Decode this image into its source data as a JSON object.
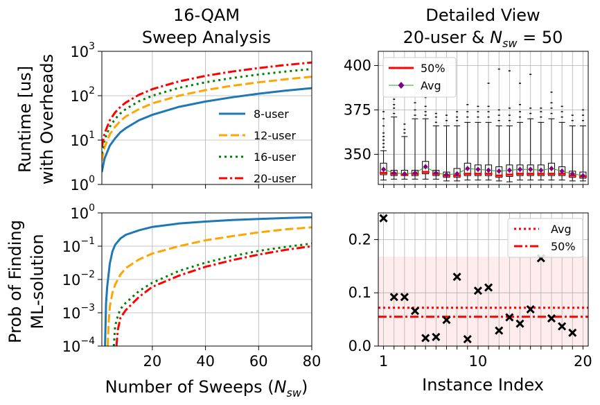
{
  "chart_data": [
    {
      "id": "top-left",
      "type": "line",
      "title_lines": [
        "16-QAM",
        "Sweep Analysis"
      ],
      "ylabel_lines": [
        "Runtime [us]",
        "with Overheads"
      ],
      "xlabel": "",
      "xlim": [
        1,
        80
      ],
      "ylim": [
        1,
        1000
      ],
      "yscale": "log",
      "xticks": [
        20,
        40,
        60,
        80
      ],
      "yticks": [
        {
          "base": "10",
          "exp": "0",
          "v": 1
        },
        {
          "base": "10",
          "exp": "1",
          "v": 10
        },
        {
          "base": "10",
          "exp": "2",
          "v": 100
        },
        {
          "base": "10",
          "exp": "3",
          "v": 1000
        }
      ],
      "grid": true,
      "legend_position": "lower-right",
      "series": [
        {
          "name": "8-user",
          "color": "#1f77b4",
          "dash": "",
          "x": [
            1,
            2,
            4,
            6,
            8,
            10,
            15,
            20,
            30,
            40,
            50,
            60,
            70,
            80
          ],
          "y": [
            1.9,
            3.8,
            7.5,
            11,
            15,
            18.5,
            28,
            37,
            56,
            74,
            92,
            111,
            130,
            148
          ]
        },
        {
          "name": "12-user",
          "color": "#ffa500",
          "dash": "12,5",
          "x": [
            1,
            2,
            4,
            6,
            8,
            10,
            15,
            20,
            30,
            40,
            50,
            60,
            70,
            80
          ],
          "y": [
            3.4,
            6.8,
            13.5,
            20,
            27,
            34,
            50,
            67,
            100,
            134,
            167,
            200,
            234,
            268
          ]
        },
        {
          "name": "16-user",
          "color": "#008000",
          "dash": "3,5",
          "x": [
            1,
            2,
            4,
            6,
            8,
            10,
            15,
            20,
            30,
            40,
            50,
            60,
            70,
            80
          ],
          "y": [
            5,
            10,
            20,
            30,
            40,
            50,
            75,
            100,
            150,
            200,
            250,
            300,
            350,
            400
          ]
        },
        {
          "name": "20-user",
          "color": "#ff0000",
          "dash": "12,4,3,4",
          "x": [
            1,
            2,
            4,
            6,
            8,
            10,
            15,
            20,
            30,
            40,
            50,
            60,
            70,
            80
          ],
          "y": [
            7,
            14,
            28,
            42,
            56,
            70,
            105,
            140,
            210,
            280,
            350,
            420,
            490,
            560
          ]
        }
      ]
    },
    {
      "id": "top-right",
      "type": "box",
      "title_lines": [
        "Detailed View",
        "20-user & N_sw = 50"
      ],
      "title_line2": {
        "pre": "20-user & ",
        "main": "N",
        "sub": "sw",
        "post": " = 50"
      },
      "xlabel": "",
      "ylabel": "",
      "xlim": [
        0.5,
        20.5
      ],
      "ylim": [
        333,
        408
      ],
      "yticks": [
        350,
        375,
        400
      ],
      "grid": true,
      "legend_position": "upper-left",
      "legend": [
        {
          "name": "50%",
          "color": "#ff0000",
          "kind": "line"
        },
        {
          "name": "Avg",
          "color": "#800080",
          "kind": "line-diamond",
          "line_color": "#2ca02c"
        }
      ],
      "boxes": [
        {
          "index": 1,
          "whislo": 335.5,
          "q1": 338.5,
          "med": 339.5,
          "q3": 345,
          "whishi": 352,
          "avg": 341.5,
          "outliers": [
            354,
            356,
            358,
            360,
            362,
            366,
            370,
            374
          ]
        },
        {
          "index": 2,
          "whislo": 336,
          "q1": 338,
          "med": 339,
          "q3": 341,
          "whishi": 371,
          "avg": 339.5,
          "outliers": [
            373,
            376,
            378,
            381
          ]
        },
        {
          "index": 3,
          "whislo": 336,
          "q1": 338,
          "med": 338.5,
          "q3": 341,
          "whishi": 360,
          "avg": 339,
          "outliers": [
            362,
            364,
            367
          ]
        },
        {
          "index": 4,
          "whislo": 336,
          "q1": 338,
          "med": 339,
          "q3": 341,
          "whishi": 370,
          "avg": 339.5,
          "outliers": [
            372,
            375,
            379
          ]
        },
        {
          "index": 5,
          "whislo": 336,
          "q1": 339,
          "med": 340,
          "q3": 346,
          "whishi": 370,
          "avg": 343,
          "outliers": [
            372,
            374,
            377,
            382
          ]
        },
        {
          "index": 6,
          "whislo": 336,
          "q1": 338,
          "med": 339,
          "q3": 341,
          "whishi": 366,
          "avg": 339.5,
          "outliers": [
            368,
            371,
            373
          ]
        },
        {
          "index": 7,
          "whislo": 335,
          "q1": 337,
          "med": 338,
          "q3": 340,
          "whishi": 366,
          "avg": 338.5,
          "outliers": [
            369,
            372
          ]
        },
        {
          "index": 8,
          "whislo": 335,
          "q1": 337,
          "med": 338,
          "q3": 342,
          "whishi": 366,
          "avg": 339,
          "outliers": [
            369,
            371,
            374
          ]
        },
        {
          "index": 9,
          "whislo": 335.5,
          "q1": 338,
          "med": 339,
          "q3": 345,
          "whishi": 368,
          "avg": 342,
          "outliers": [
            371,
            374,
            378
          ]
        },
        {
          "index": 10,
          "whislo": 335.5,
          "q1": 338,
          "med": 339,
          "q3": 344,
          "whishi": 368,
          "avg": 341.5,
          "outliers": [
            371,
            374,
            377
          ]
        },
        {
          "index": 11,
          "whislo": 335.5,
          "q1": 338,
          "med": 339,
          "q3": 344,
          "whishi": 368,
          "avg": 341,
          "outliers": [
            371,
            374,
            377,
            390
          ]
        },
        {
          "index": 12,
          "whislo": 335,
          "q1": 337,
          "med": 338,
          "q3": 343,
          "whishi": 366,
          "avg": 340.5,
          "outliers": [
            369,
            372,
            375,
            398
          ]
        },
        {
          "index": 13,
          "whislo": 334.5,
          "q1": 337.5,
          "med": 338.5,
          "q3": 344,
          "whishi": 366,
          "avg": 341,
          "outliers": [
            369,
            372,
            376,
            397
          ]
        },
        {
          "index": 14,
          "whislo": 335.5,
          "q1": 338,
          "med": 339,
          "q3": 344,
          "whishi": 368,
          "avg": 341.5,
          "outliers": [
            371,
            374,
            378,
            390
          ]
        },
        {
          "index": 15,
          "whislo": 335.5,
          "q1": 338,
          "med": 339,
          "q3": 344,
          "whishi": 370,
          "avg": 341.5,
          "outliers": [
            373,
            376,
            395
          ]
        },
        {
          "index": 16,
          "whislo": 335.5,
          "q1": 338,
          "med": 339,
          "q3": 344,
          "whishi": 368,
          "avg": 341,
          "outliers": [
            371,
            374,
            376
          ]
        },
        {
          "index": 17,
          "whislo": 335.5,
          "q1": 338,
          "med": 339,
          "q3": 345,
          "whishi": 370,
          "avg": 342,
          "outliers": [
            373,
            376,
            379,
            385
          ]
        },
        {
          "index": 18,
          "whislo": 335.5,
          "q1": 338,
          "med": 339,
          "q3": 343,
          "whishi": 368,
          "avg": 340.5,
          "outliers": [
            371,
            374,
            377
          ]
        },
        {
          "index": 19,
          "whislo": 335,
          "q1": 337,
          "med": 338,
          "q3": 340.5,
          "whishi": 366,
          "avg": 339,
          "outliers": [
            369,
            372
          ]
        },
        {
          "index": 20,
          "whislo": 335,
          "q1": 336.5,
          "med": 337.5,
          "q3": 340,
          "whishi": 366,
          "avg": 338,
          "outliers": [
            369,
            372,
            375
          ]
        }
      ]
    },
    {
      "id": "bottom-left",
      "type": "line",
      "title_lines": [],
      "ylabel_lines": [
        "Prob of Finding",
        "ML-solution"
      ],
      "xlabel": "Number of Sweeps (N_sw)",
      "xlabel_parts": {
        "pre": "Number of Sweeps (",
        "main": "N",
        "sub": "sw",
        "post": ")"
      },
      "xlim": [
        1,
        80
      ],
      "ylim": [
        0.0001,
        1
      ],
      "yscale": "log",
      "xticks": [
        20,
        40,
        60,
        80
      ],
      "yticks": [
        {
          "base": "10",
          "exp": "−4",
          "v": 0.0001
        },
        {
          "base": "10",
          "exp": "−3",
          "v": 0.001
        },
        {
          "base": "10",
          "exp": "−2",
          "v": 0.01
        },
        {
          "base": "10",
          "exp": "−1",
          "v": 0.1
        },
        {
          "base": "10",
          "exp": "0",
          "v": 1
        }
      ],
      "grid": true,
      "series": [
        {
          "name": "8-user",
          "color": "#1f77b4",
          "dash": "",
          "x": [
            2.2,
            2.6,
            3,
            4,
            5,
            6,
            8,
            10,
            15,
            20,
            30,
            40,
            50,
            60,
            70,
            80
          ],
          "y": [
            0.0001,
            0.002,
            0.006,
            0.03,
            0.07,
            0.11,
            0.17,
            0.22,
            0.3,
            0.38,
            0.48,
            0.55,
            0.61,
            0.66,
            0.7,
            0.74
          ]
        },
        {
          "name": "12-user",
          "color": "#ffa500",
          "dash": "12,5",
          "x": [
            3.2,
            3.6,
            4,
            5,
            6,
            8,
            10,
            15,
            20,
            30,
            40,
            50,
            60,
            70,
            80
          ],
          "y": [
            0.0001,
            0.0006,
            0.0015,
            0.004,
            0.007,
            0.014,
            0.022,
            0.04,
            0.06,
            0.1,
            0.15,
            0.2,
            0.26,
            0.32,
            0.37
          ]
        },
        {
          "name": "16-user",
          "color": "#008000",
          "dash": "3,5",
          "x": [
            5.5,
            6,
            7,
            8,
            10,
            15,
            20,
            30,
            40,
            50,
            60,
            70,
            80
          ],
          "y": [
            0.0001,
            0.0004,
            0.0008,
            0.0013,
            0.002,
            0.0045,
            0.008,
            0.018,
            0.032,
            0.05,
            0.072,
            0.095,
            0.12
          ]
        },
        {
          "name": "20-user",
          "color": "#ff0000",
          "dash": "12,4,3,4",
          "x": [
            6.5,
            7,
            8,
            10,
            15,
            20,
            30,
            40,
            50,
            60,
            70,
            80
          ],
          "y": [
            0.0001,
            0.0003,
            0.0007,
            0.0012,
            0.003,
            0.006,
            0.013,
            0.024,
            0.038,
            0.056,
            0.077,
            0.1
          ]
        }
      ]
    },
    {
      "id": "bottom-right",
      "type": "scatter",
      "title_lines": [],
      "xlabel": "Instance Index",
      "ylabel": "",
      "xlim": [
        0.5,
        20.5
      ],
      "ylim": [
        0,
        0.25
      ],
      "xticks": [
        1,
        10,
        20
      ],
      "yticks": [
        0.0,
        0.1,
        0.2
      ],
      "ytick_labels": [
        "0.0",
        "0.1",
        "0.2"
      ],
      "grid": true,
      "legend_position": "upper-right",
      "shaded_band": [
        0,
        0.168
      ],
      "avg": 0.072,
      "median": 0.055,
      "legend": [
        {
          "name": "Avg",
          "color": "#ff0000",
          "dash": "3,4"
        },
        {
          "name": "50%",
          "color": "#ff0000",
          "dash": "12,4,3,4"
        }
      ],
      "points": [
        {
          "x": 1,
          "y": 0.24
        },
        {
          "x": 2,
          "y": 0.092
        },
        {
          "x": 3,
          "y": 0.092
        },
        {
          "x": 4,
          "y": 0.066
        },
        {
          "x": 5,
          "y": 0.015
        },
        {
          "x": 6,
          "y": 0.017
        },
        {
          "x": 7,
          "y": 0.049
        },
        {
          "x": 8,
          "y": 0.13
        },
        {
          "x": 9,
          "y": 0.013
        },
        {
          "x": 10,
          "y": 0.104
        },
        {
          "x": 11,
          "y": 0.11
        },
        {
          "x": 12,
          "y": 0.029
        },
        {
          "x": 13,
          "y": 0.054
        },
        {
          "x": 14,
          "y": 0.042
        },
        {
          "x": 15,
          "y": 0.069
        },
        {
          "x": 16,
          "y": 0.165
        },
        {
          "x": 17,
          "y": 0.052
        },
        {
          "x": 18,
          "y": 0.037
        },
        {
          "x": 19,
          "y": 0.025
        }
      ]
    }
  ]
}
